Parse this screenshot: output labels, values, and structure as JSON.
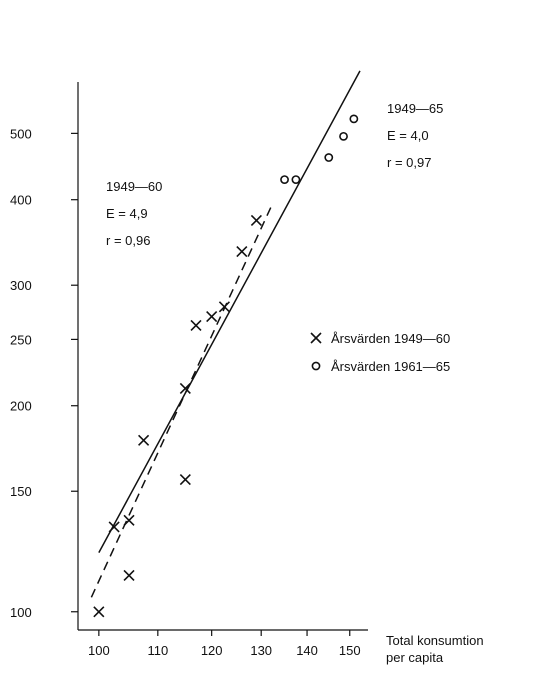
{
  "chart_data": {
    "type": "scatter",
    "x_scale": "log",
    "y_scale": "log",
    "xlim": [
      97,
      153
    ],
    "ylim": [
      95,
      640
    ],
    "x_ticks": [
      100,
      110,
      120,
      130,
      140,
      150
    ],
    "x_tick_labels": [
      "100",
      "110",
      "120",
      "130",
      "140",
      "150"
    ],
    "y_ticks": [
      100,
      150,
      200,
      250,
      300,
      400,
      500
    ],
    "y_tick_labels": [
      "100",
      "150",
      "200",
      "250",
      "300",
      "400",
      "500"
    ],
    "xlabel": [
      "Total konsumtion",
      "per capita"
    ],
    "ylabel": "",
    "grid": false,
    "legend_position": "right",
    "series": [
      {
        "name": "Årsvärden 1949—60",
        "marker": "x",
        "x": [
          100,
          102.5,
          105,
          105,
          107.5,
          115,
          115,
          117,
          120,
          122.5,
          126,
          129
        ],
        "y": [
          100,
          133,
          136,
          113,
          178,
          212,
          156,
          262,
          270,
          279,
          336,
          373
        ]
      },
      {
        "name": "Årsvärden 1961—65",
        "marker": "o",
        "x": [
          135,
          137.5,
          145,
          148.5,
          151
        ],
        "y": [
          428,
          428,
          461,
          495,
          525
        ]
      }
    ],
    "fits": [
      {
        "style": "dashed",
        "x": [
          98.8,
          132.5
        ],
        "y": [
          105,
          396
        ],
        "annotation": [
          "1949—60",
          "E = 4,9",
          "r = 0,96"
        ]
      },
      {
        "style": "solid",
        "x": [
          100,
          152.5
        ],
        "y": [
          122,
          617
        ],
        "annotation": [
          "1949—65",
          "E = 4,0",
          "r = 0,97"
        ]
      }
    ]
  }
}
